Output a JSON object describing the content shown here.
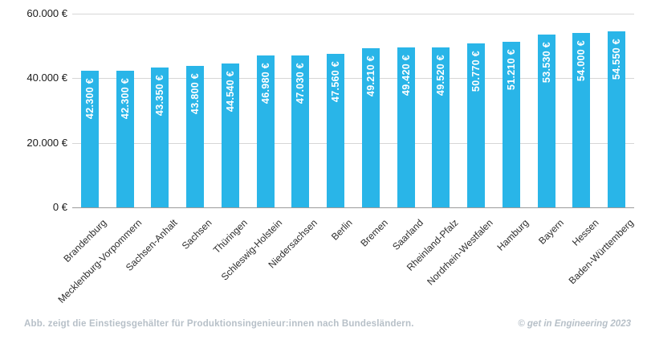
{
  "chart_data": {
    "type": "bar",
    "title": "",
    "xlabel": "",
    "ylabel": "",
    "categories": [
      "Brandenburg",
      "Mecklenburg-Vorpommern",
      "Sachsen-Anhalt",
      "Sachsen",
      "Thüringen",
      "Schleswig-Holstein",
      "Niedersachsen",
      "Berlin",
      "Bremen",
      "Saarland",
      "Rheinland-Pfalz",
      "Nordrhein-Westfalen",
      "Hamburg",
      "Bayern",
      "Hessen",
      "Baden-Württemberg"
    ],
    "values": [
      42300,
      42300,
      43350,
      43800,
      44540,
      46980,
      47030,
      47560,
      49210,
      49420,
      49520,
      50770,
      51210,
      53530,
      54000,
      54550
    ],
    "value_labels": [
      "42.300 €",
      "42.300 €",
      "43.350 €",
      "43.800 €",
      "44.540 €",
      "46.980 €",
      "47.030 €",
      "47.560 €",
      "49.210 €",
      "49.420 €",
      "49.520 €",
      "50.770 €",
      "51.210 €",
      "53.530 €",
      "54.000 €",
      "54.550 €"
    ],
    "ylim": [
      0,
      60000
    ],
    "yticks": [
      {
        "value": 0,
        "label": "0 €"
      },
      {
        "value": 20000,
        "label": "20.000 €"
      },
      {
        "value": 40000,
        "label": "40.000 €"
      },
      {
        "value": 60000,
        "label": "60.000 €"
      }
    ],
    "grid": true,
    "legend": "none",
    "bar_color": "#29b5e8",
    "bar_label_color": "#ffffff",
    "grid_color": "#d6d6d6",
    "axis_color": "#9b9b9b",
    "tick_label_color": "#1a1a1a"
  },
  "footer": {
    "caption": "Abb. zeigt die Einstiegsgehälter für Produktionsingenieur:innen nach Bundesländern.",
    "credit": "© get in Engineering 2023"
  }
}
